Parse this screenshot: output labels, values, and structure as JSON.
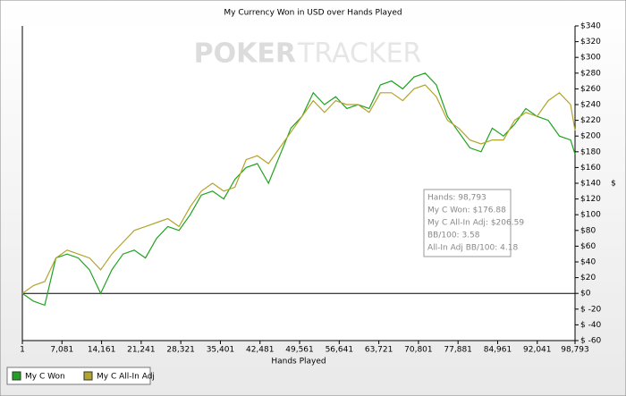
{
  "chart_data": {
    "type": "line",
    "title": "My Currency Won in USD over Hands Played",
    "xlabel": "Hands Played",
    "ylabel": "$",
    "watermark": {
      "left": "POKER",
      "right": "TRACKER"
    },
    "grid": false,
    "legend": "bottom-left",
    "x": [
      1,
      2000,
      4000,
      6000,
      8000,
      10000,
      12000,
      14000,
      16000,
      18000,
      20000,
      22000,
      24000,
      26000,
      28000,
      30000,
      32000,
      34000,
      36000,
      38000,
      40000,
      42000,
      44000,
      46000,
      48000,
      50000,
      52000,
      54000,
      56000,
      58000,
      60000,
      62000,
      64000,
      66000,
      68000,
      70000,
      72000,
      74000,
      76000,
      78000,
      80000,
      82000,
      84000,
      86000,
      88000,
      90000,
      92000,
      94000,
      96000,
      98000,
      98793
    ],
    "series": [
      {
        "name": "My C Won",
        "color": "#1fa21f",
        "values": [
          0,
          -10,
          -15,
          45,
          50,
          45,
          30,
          0,
          30,
          50,
          55,
          45,
          70,
          85,
          80,
          100,
          125,
          130,
          120,
          145,
          160,
          165,
          140,
          175,
          210,
          225,
          255,
          240,
          250,
          235,
          240,
          235,
          265,
          270,
          260,
          275,
          280,
          265,
          225,
          205,
          185,
          180,
          210,
          200,
          215,
          235,
          225,
          220,
          200,
          195,
          177
        ]
      },
      {
        "name": "My C All-In Adj",
        "color": "#b3a42c",
        "values": [
          0,
          10,
          15,
          45,
          55,
          50,
          45,
          30,
          50,
          65,
          80,
          85,
          90,
          95,
          85,
          110,
          130,
          140,
          130,
          135,
          170,
          175,
          165,
          185,
          205,
          225,
          245,
          230,
          245,
          240,
          240,
          230,
          255,
          255,
          245,
          260,
          265,
          250,
          220,
          210,
          195,
          190,
          195,
          195,
          220,
          230,
          225,
          245,
          255,
          240,
          207
        ]
      }
    ],
    "xlim": [
      1,
      98793
    ],
    "xticks": [
      1,
      {
        "value": 7081,
        "label": "7,081"
      },
      {
        "value": 14161,
        "label": "14,161"
      },
      {
        "value": 21241,
        "label": "21,241"
      },
      {
        "value": 28321,
        "label": "28,321"
      },
      {
        "value": 35401,
        "label": "35,401"
      },
      {
        "value": 42481,
        "label": "42,481"
      },
      {
        "value": 49561,
        "label": "49,561"
      },
      {
        "value": 56641,
        "label": "56,641"
      },
      {
        "value": 63721,
        "label": "63,721"
      },
      {
        "value": 70801,
        "label": "70,801"
      },
      {
        "value": 77881,
        "label": "77,881"
      },
      {
        "value": 84961,
        "label": "84,961"
      },
      {
        "value": 92041,
        "label": "92,041"
      },
      {
        "value": 98793,
        "label": "98,793"
      }
    ],
    "ylim": [
      -60,
      340
    ],
    "yticks": [
      {
        "value": 340,
        "label": "$340"
      },
      {
        "value": 320,
        "label": "$320"
      },
      {
        "value": 300,
        "label": "$300"
      },
      {
        "value": 280,
        "label": "$280"
      },
      {
        "value": 260,
        "label": "$260"
      },
      {
        "value": 240,
        "label": "$240"
      },
      {
        "value": 220,
        "label": "$220"
      },
      {
        "value": 200,
        "label": "$200"
      },
      {
        "value": 180,
        "label": "$180"
      },
      {
        "value": 160,
        "label": "$160"
      },
      {
        "value": 140,
        "label": "$140"
      },
      {
        "value": 120,
        "label": "$120"
      },
      {
        "value": 100,
        "label": "$100"
      },
      {
        "value": 80,
        "label": "$80"
      },
      {
        "value": 60,
        "label": "$60"
      },
      {
        "value": 40,
        "label": "$40"
      },
      {
        "value": 20,
        "label": "$20"
      },
      {
        "value": 0,
        "label": "$0"
      },
      {
        "value": -20,
        "label": "$ -20"
      },
      {
        "value": -40,
        "label": "$ -40"
      },
      {
        "value": -60,
        "label": "$ -60"
      }
    ],
    "info_box": [
      "Hands: 98,793",
      "My C Won: $176.88",
      "My C All-In Adj: $206.59",
      "BB/100: 3.58",
      "All-In Adj BB/100: 4.18"
    ]
  }
}
